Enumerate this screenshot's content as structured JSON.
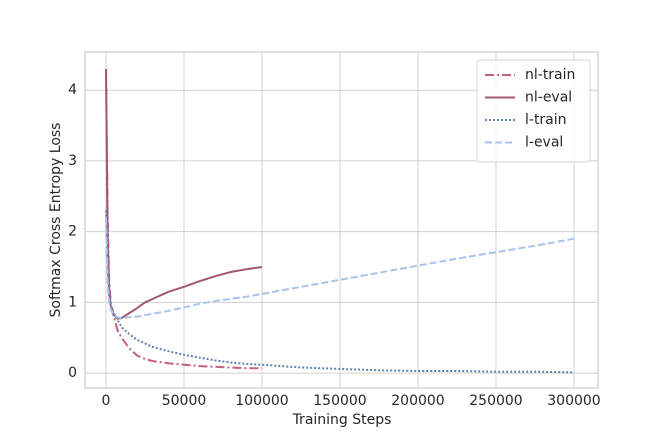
{
  "chart_data": {
    "type": "line",
    "x_label": "Training Steps",
    "y_label": "Softmax Cross Entropy Loss",
    "x": [
      0,
      1000,
      2000,
      3000,
      5000,
      7500,
      10000,
      15000,
      20000,
      25000,
      30000,
      40000,
      50000,
      60000,
      70000,
      80000,
      90000,
      100000,
      125000,
      150000,
      175000,
      200000,
      225000,
      250000,
      275000,
      300000
    ],
    "series": [
      {
        "name": "nl-train",
        "color": "#c4607f",
        "style": "dash-dot",
        "values": [
          4.3,
          2.3,
          1.3,
          1.0,
          0.8,
          0.6,
          0.5,
          0.35,
          0.25,
          0.2,
          0.17,
          0.14,
          0.12,
          0.1,
          0.09,
          0.08,
          0.07,
          0.07,
          null,
          null,
          null,
          null,
          null,
          null,
          null,
          null
        ]
      },
      {
        "name": "nl-eval",
        "color": "#a3576f",
        "style": "solid",
        "values": [
          4.3,
          2.0,
          1.2,
          0.95,
          0.82,
          0.77,
          0.78,
          0.85,
          0.92,
          1.0,
          1.05,
          1.15,
          1.22,
          1.3,
          1.37,
          1.43,
          1.47,
          1.5,
          null,
          null,
          null,
          null,
          null,
          null,
          null,
          null
        ]
      },
      {
        "name": "l-train",
        "color": "#5f80b4",
        "style": "dotted",
        "values": [
          2.3,
          1.5,
          1.1,
          0.95,
          0.85,
          0.75,
          0.65,
          0.55,
          0.47,
          0.42,
          0.37,
          0.31,
          0.26,
          0.22,
          0.18,
          0.15,
          0.13,
          0.12,
          0.08,
          0.06,
          0.04,
          0.03,
          0.03,
          0.02,
          0.02,
          0.01
        ]
      },
      {
        "name": "l-eval",
        "color": "#a8c3ec",
        "style": "dashed",
        "values": [
          2.2,
          1.3,
          1.0,
          0.9,
          0.82,
          0.79,
          0.78,
          0.79,
          0.8,
          0.82,
          0.84,
          0.88,
          0.93,
          0.98,
          1.02,
          1.05,
          1.08,
          1.12,
          1.22,
          1.32,
          1.42,
          1.52,
          1.62,
          1.71,
          1.8,
          1.9
        ]
      }
    ],
    "xlim": [
      -13460,
      315400
    ],
    "xticks": [
      0,
      50000,
      100000,
      150000,
      200000,
      250000,
      300000
    ],
    "ylim": [
      -0.21,
      4.54
    ],
    "yticks": [
      0,
      1,
      2,
      3,
      4
    ],
    "grid": true,
    "legend": "upper-right"
  }
}
